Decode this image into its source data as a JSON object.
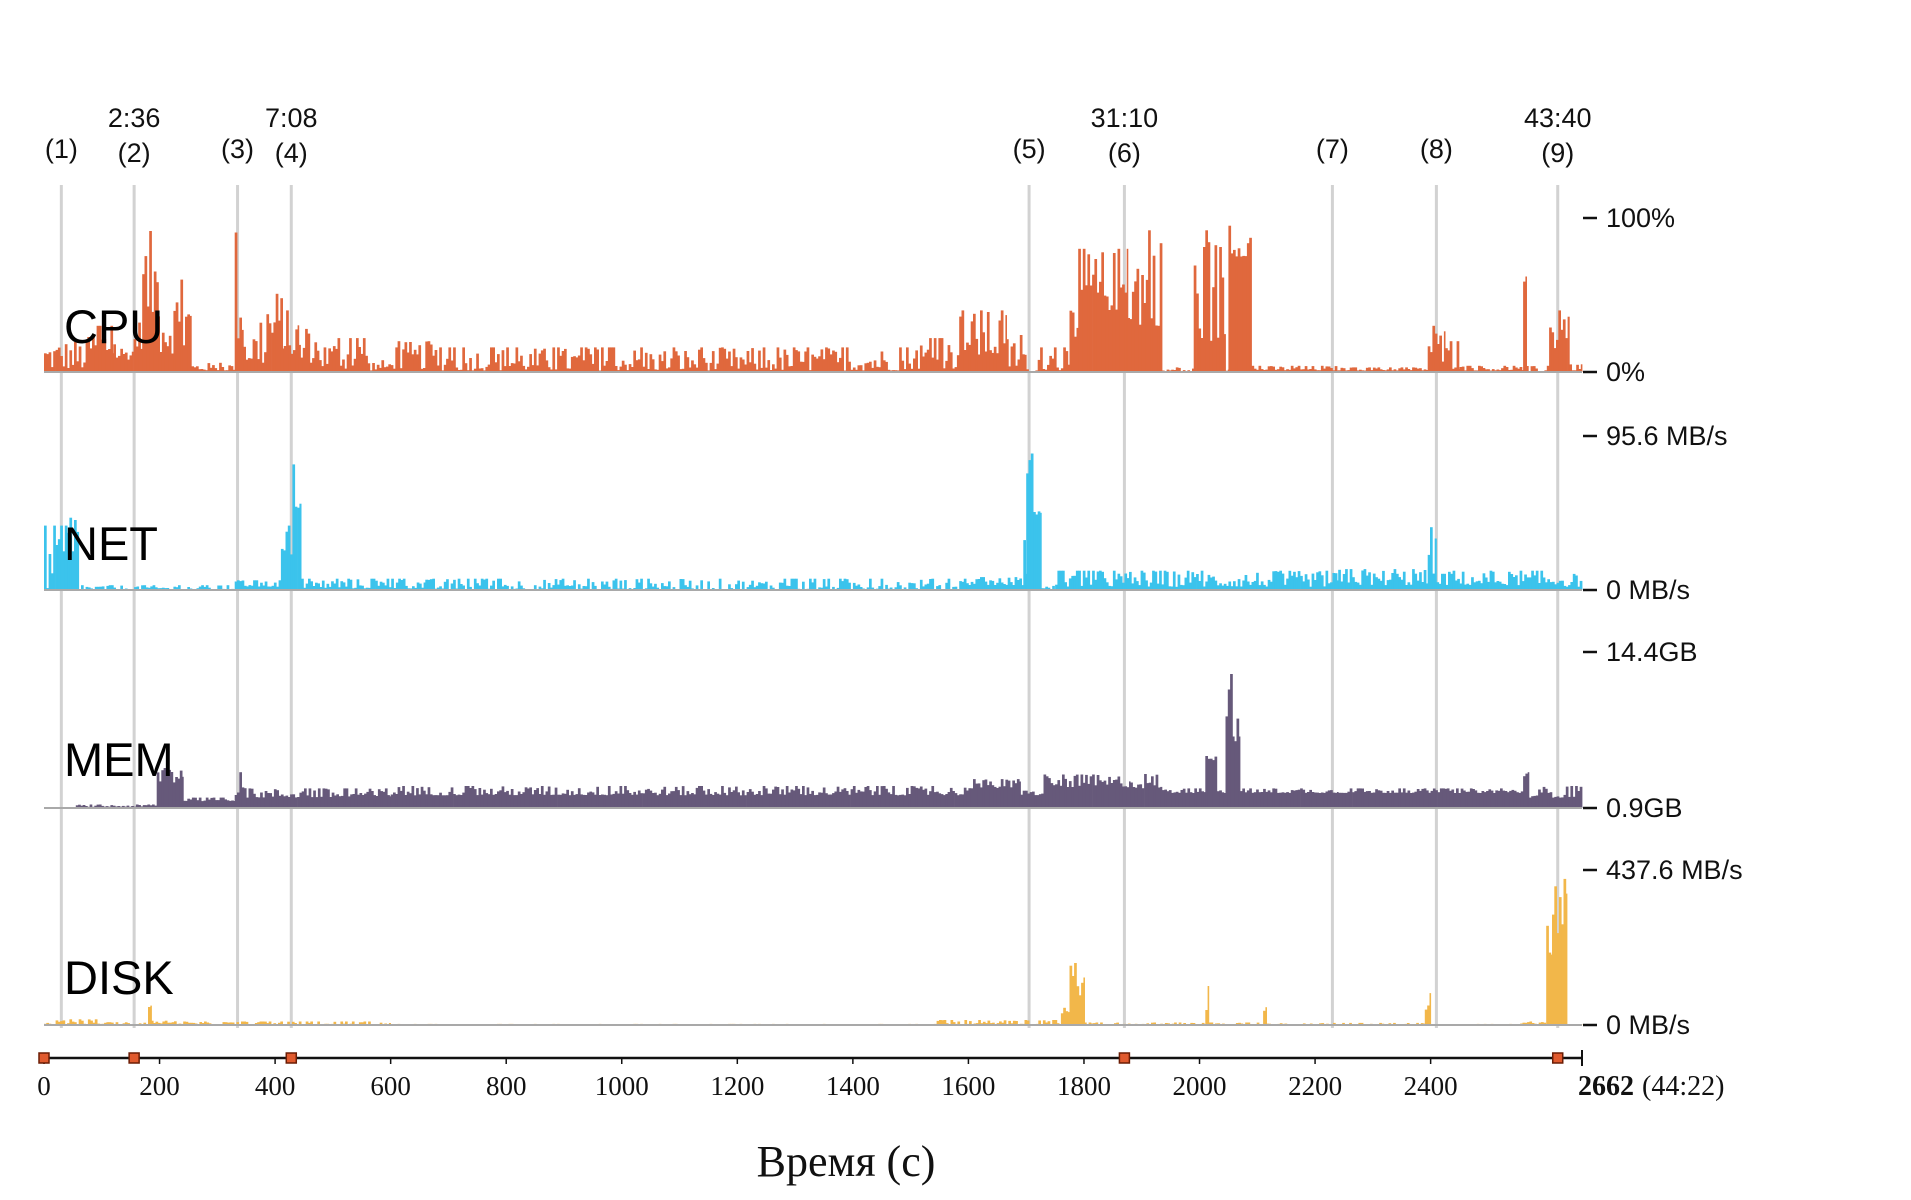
{
  "chart_data": {
    "type": "bar",
    "x_range": [
      0,
      2662
    ],
    "x_ticks": [
      "0",
      "200",
      "400",
      "600",
      "800",
      "1000",
      "1200",
      "1400",
      "1600",
      "1800",
      "2000",
      "2200",
      "2400"
    ],
    "x_end": {
      "value": "2662",
      "formatted": "(44:22)"
    },
    "xlabel": "Время (с)",
    "markers": [
      {
        "id": "(1)",
        "time": "",
        "t": 30
      },
      {
        "id": "(2)",
        "time": "2:36",
        "t": 156
      },
      {
        "id": "(3)",
        "time": "",
        "t": 335
      },
      {
        "id": "(4)",
        "time": "7:08",
        "t": 428
      },
      {
        "id": "(5)",
        "time": "",
        "t": 1705
      },
      {
        "id": "(6)",
        "time": "31:10",
        "t": 1870
      },
      {
        "id": "(7)",
        "time": "",
        "t": 2230
      },
      {
        "id": "(8)",
        "time": "",
        "t": 2410
      },
      {
        "id": "(9)",
        "time": "43:40",
        "t": 2620
      }
    ],
    "axis_markers": [
      0,
      156,
      428,
      1870,
      2620
    ],
    "panels": [
      {
        "name": "CPU",
        "color": "#e0683d",
        "ymax_label": "100%",
        "ymin_label": "0%",
        "ylim": [
          0,
          100
        ],
        "segments": [
          [
            0,
            75,
            2,
            22
          ],
          [
            75,
            120,
            10,
            30
          ],
          [
            120,
            155,
            8,
            18
          ],
          [
            155,
            170,
            15,
            35
          ],
          [
            170,
            200,
            35,
            92
          ],
          [
            200,
            255,
            12,
            60
          ],
          [
            255,
            330,
            1,
            6
          ],
          [
            330,
            345,
            20,
            100
          ],
          [
            345,
            385,
            5,
            32
          ],
          [
            385,
            415,
            15,
            55
          ],
          [
            415,
            440,
            10,
            40
          ],
          [
            440,
            480,
            6,
            28
          ],
          [
            480,
            560,
            2,
            22
          ],
          [
            560,
            600,
            1,
            8
          ],
          [
            600,
            680,
            2,
            20
          ],
          [
            680,
            1500,
            1,
            16
          ],
          [
            1500,
            1580,
            2,
            22
          ],
          [
            1580,
            1665,
            10,
            40
          ],
          [
            1665,
            1700,
            2,
            24
          ],
          [
            1700,
            1720,
            0,
            2
          ],
          [
            1720,
            1775,
            1,
            16
          ],
          [
            1775,
            1790,
            10,
            40
          ],
          [
            1790,
            1875,
            40,
            80
          ],
          [
            1875,
            1935,
            30,
            92
          ],
          [
            1935,
            1990,
            0,
            3
          ],
          [
            1990,
            2045,
            20,
            92
          ],
          [
            2045,
            2050,
            0,
            3
          ],
          [
            2050,
            2090,
            75,
            95
          ],
          [
            2090,
            2240,
            1,
            4
          ],
          [
            2240,
            2395,
            1,
            3
          ],
          [
            2395,
            2425,
            5,
            30
          ],
          [
            2425,
            2450,
            2,
            20
          ],
          [
            2450,
            2560,
            1,
            4
          ],
          [
            2560,
            2565,
            30,
            62
          ],
          [
            2565,
            2605,
            0,
            4
          ],
          [
            2605,
            2625,
            15,
            40
          ],
          [
            2625,
            2640,
            20,
            50
          ],
          [
            2640,
            2662,
            1,
            5
          ]
        ]
      },
      {
        "name": "NET",
        "color": "#3bc3ec",
        "ymax_label": "95.6 MB/s",
        "ymin_label": "0 MB/s",
        "ylim": [
          0,
          95.6
        ],
        "segments": [
          [
            0,
            40,
            0,
            40
          ],
          [
            40,
            60,
            10,
            55
          ],
          [
            60,
            330,
            0,
            3
          ],
          [
            330,
            410,
            2,
            6
          ],
          [
            410,
            430,
            15,
            40
          ],
          [
            430,
            445,
            50,
            78
          ],
          [
            445,
            660,
            1,
            7
          ],
          [
            660,
            1600,
            0,
            7
          ],
          [
            1600,
            1695,
            3,
            8
          ],
          [
            1695,
            1700,
            10,
            40
          ],
          [
            1700,
            1725,
            45,
            88
          ],
          [
            1725,
            1750,
            0,
            3
          ],
          [
            1750,
            2240,
            2,
            12
          ],
          [
            2240,
            2395,
            3,
            13
          ],
          [
            2395,
            2410,
            10,
            40
          ],
          [
            2410,
            2630,
            3,
            12
          ],
          [
            2630,
            2662,
            2,
            10
          ]
        ]
      },
      {
        "name": "MEM",
        "color": "#66597a",
        "ymax_label": "14.4GB",
        "ymin_label": "0.9GB",
        "ylim": [
          0.9,
          14.4
        ],
        "segments": [
          [
            0,
            55,
            0.8,
            0.9
          ],
          [
            55,
            195,
            1.0,
            1.2
          ],
          [
            195,
            240,
            3.0,
            5.5
          ],
          [
            240,
            330,
            1.5,
            1.8
          ],
          [
            330,
            350,
            2.0,
            4.0
          ],
          [
            350,
            600,
            1.8,
            2.6
          ],
          [
            600,
            1600,
            2.0,
            2.8
          ],
          [
            1600,
            1690,
            2.6,
            3.4
          ],
          [
            1690,
            1730,
            2.0,
            2.4
          ],
          [
            1730,
            1880,
            2.7,
            3.8
          ],
          [
            1880,
            1935,
            2.6,
            4.0
          ],
          [
            1935,
            2010,
            2.2,
            2.6
          ],
          [
            2010,
            2030,
            5.0,
            7.0
          ],
          [
            2030,
            2045,
            2.2,
            2.6
          ],
          [
            2045,
            2060,
            7.0,
            12.5
          ],
          [
            2060,
            2070,
            6.5,
            9.0
          ],
          [
            2070,
            2240,
            2.2,
            2.6
          ],
          [
            2240,
            2560,
            2.2,
            2.6
          ],
          [
            2560,
            2570,
            3.0,
            4.0
          ],
          [
            2570,
            2662,
            1.8,
            2.8
          ]
        ]
      },
      {
        "name": "DISK",
        "color": "#f2b74a",
        "ymax_label": "437.6 MB/s",
        "ymin_label": "0 MB/s",
        "ylim": [
          0,
          437.6
        ],
        "segments": [
          [
            0,
            100,
            2,
            16
          ],
          [
            100,
            180,
            1,
            8
          ],
          [
            180,
            185,
            50,
            100
          ],
          [
            185,
            245,
            3,
            12
          ],
          [
            245,
            600,
            0,
            10
          ],
          [
            600,
            1545,
            0,
            3
          ],
          [
            1545,
            1760,
            0,
            14
          ],
          [
            1760,
            1775,
            30,
            80
          ],
          [
            1775,
            1800,
            60,
            175
          ],
          [
            1800,
            2010,
            0,
            7
          ],
          [
            2010,
            2015,
            40,
            110
          ],
          [
            2015,
            2110,
            0,
            7
          ],
          [
            2110,
            2115,
            40,
            100
          ],
          [
            2115,
            2390,
            0,
            6
          ],
          [
            2390,
            2400,
            30,
            90
          ],
          [
            2400,
            2555,
            0,
            3
          ],
          [
            2555,
            2600,
            2,
            10
          ],
          [
            2600,
            2610,
            150,
            350
          ],
          [
            2610,
            2635,
            250,
            430
          ],
          [
            2635,
            2662,
            0,
            2
          ]
        ]
      }
    ]
  }
}
